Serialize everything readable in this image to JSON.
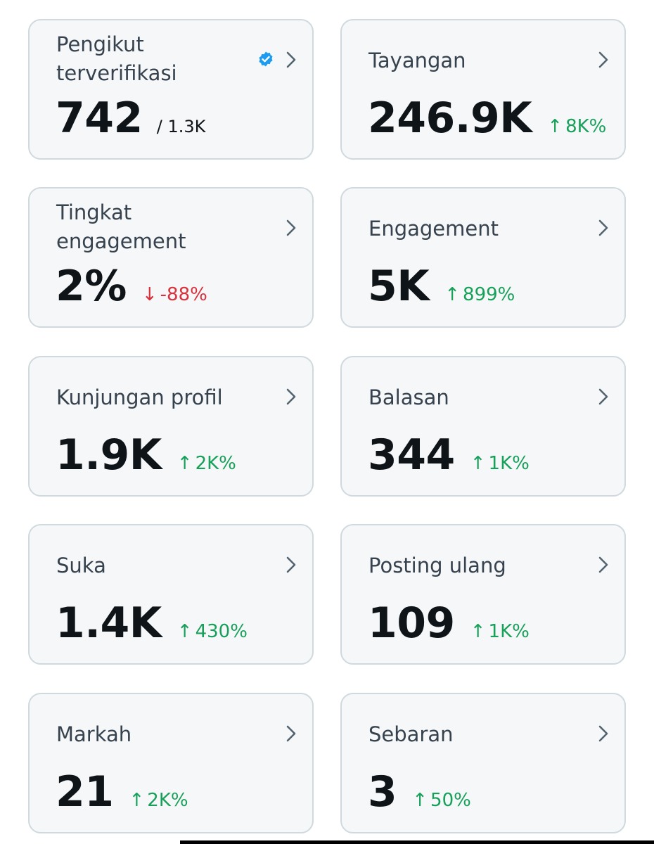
{
  "colors": {
    "card_background": "#f6f7f8",
    "card_border": "#cfd9de",
    "label": "#36424e",
    "value": "#0f1419",
    "positive": "#17a05a",
    "negative": "#d8303c",
    "verified_badge": "#1d9bf0"
  },
  "icons": {
    "chevron": "chevron-right-icon",
    "verified": "verified-badge-icon",
    "up": "↑",
    "down": "↓"
  },
  "cards": {
    "verified_followers": {
      "label": "Pengikut terverifikasi",
      "value": "742",
      "total": "/ 1.3K"
    },
    "impressions": {
      "label": "Tayangan",
      "value": "246.9K",
      "change": "8K%",
      "direction": "up"
    },
    "engagement_rate": {
      "label": "Tingkat engagement",
      "value": "2%",
      "change": "-88%",
      "direction": "down"
    },
    "engagements": {
      "label": "Engagement",
      "value": "5K",
      "change": "899%",
      "direction": "up"
    },
    "profile_visits": {
      "label": "Kunjungan profil",
      "value": "1.9K",
      "change": "2K%",
      "direction": "up"
    },
    "replies": {
      "label": "Balasan",
      "value": "344",
      "change": "1K%",
      "direction": "up"
    },
    "likes": {
      "label": "Suka",
      "value": "1.4K",
      "change": "430%",
      "direction": "up"
    },
    "reposts": {
      "label": "Posting ulang",
      "value": "109",
      "change": "1K%",
      "direction": "up"
    },
    "bookmarks": {
      "label": "Markah",
      "value": "21",
      "change": "2K%",
      "direction": "up"
    },
    "shares": {
      "label": "Sebaran",
      "value": "3",
      "change": "50%",
      "direction": "up"
    }
  }
}
